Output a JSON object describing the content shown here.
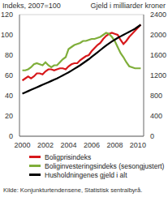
{
  "chart_data": {
    "type": "line",
    "y_label": "Indeks, 2007=100",
    "y2_label": "Gjeld i milliarder kroner",
    "source": "Kilde: Konjunkturtendensene, Statistisk sentralbyrå.",
    "x": [
      2000,
      2000.25,
      2000.5,
      2000.75,
      2001,
      2001.25,
      2001.5,
      2001.75,
      2002,
      2002.25,
      2002.5,
      2002.75,
      2003,
      2003.25,
      2003.5,
      2003.75,
      2004,
      2004.25,
      2004.5,
      2004.75,
      2005,
      2005.25,
      2005.5,
      2005.75,
      2006,
      2006.25,
      2006.5,
      2006.75,
      2007,
      2007.25,
      2007.5,
      2007.75,
      2008,
      2008.25,
      2008.5,
      2008.75,
      2009,
      2009.25,
      2009.5,
      2009.75,
      2010,
      2010.25
    ],
    "xlim": [
      1999.75,
      2010.5
    ],
    "xticks": [
      2000,
      2002,
      2004,
      2006,
      2008,
      2010
    ],
    "ylim": [
      0,
      120
    ],
    "yticks": [
      0,
      20,
      40,
      60,
      80,
      100,
      120
    ],
    "y2lim": [
      0,
      2400
    ],
    "y2ticks": [
      0,
      400,
      800,
      1200,
      1600,
      2000,
      2400
    ],
    "grid": true,
    "legend": "bottom",
    "series": [
      {
        "name": "Boligprisindeks",
        "color": "#d7191c",
        "values": [
          55,
          57,
          59,
          57,
          59,
          62,
          62,
          61,
          64,
          66,
          66,
          65,
          66,
          67,
          67,
          66,
          69,
          71,
          72,
          72,
          75,
          77,
          79,
          80,
          84,
          87,
          90,
          92,
          96,
          99,
          101,
          102,
          101,
          100,
          95,
          91,
          94,
          98,
          101,
          104,
          107,
          110
        ]
      },
      {
        "name": "Boliginvesteringsindeks (sesongjustert)",
        "color": "#7fae3a",
        "values": [
          65,
          65,
          66,
          68,
          71,
          72,
          71,
          70,
          73,
          70,
          68,
          70,
          70,
          73,
          76,
          78,
          86,
          88,
          90,
          91,
          92,
          94,
          94,
          95,
          96,
          96,
          97,
          98,
          100,
          102,
          101,
          98,
          94,
          88,
          82,
          78,
          73,
          69,
          68,
          67,
          67,
          67
        ]
      },
      {
        "name": "Husholdningenes gjeld i alt",
        "color": "#000000",
        "axis": "y2",
        "values": [
          840,
          865,
          890,
          915,
          940,
          965,
          990,
          1015,
          1040,
          1065,
          1090,
          1115,
          1140,
          1170,
          1200,
          1230,
          1260,
          1295,
          1330,
          1365,
          1400,
          1440,
          1480,
          1520,
          1565,
          1610,
          1655,
          1700,
          1745,
          1790,
          1830,
          1870,
          1905,
          1940,
          1970,
          2000,
          2030,
          2060,
          2090,
          2120,
          2160,
          2200
        ]
      }
    ]
  }
}
